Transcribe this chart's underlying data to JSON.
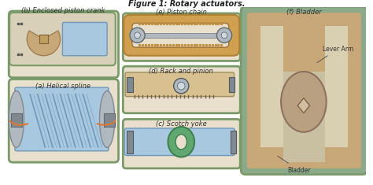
{
  "title": "Figure 1: Rotary actuators.",
  "bg_color": "#f5f5f5",
  "labels": {
    "a": "(a) Helical spline",
    "b": "(b) Enclosed piston crank",
    "c": "(c) Scotch yoke",
    "d": "(d) Rack and pinion",
    "e": "(e) Piston chain",
    "f": "(f) Bladder",
    "bladder_label": "Bladder",
    "lever_label": "Lever Arm"
  },
  "colors": {
    "border_green": "#7a9a6a",
    "fill_light": "#e8e0cc",
    "fill_tan": "#c8a878",
    "fill_blue_light": "#a8c8e0",
    "fill_blue": "#7098b8",
    "fill_gray": "#b0b8c0",
    "fill_dark_gray": "#808890",
    "fill_green_dark": "#5a7a5a",
    "background": "#ffffff",
    "text_color": "#333333",
    "title_color": "#222222"
  }
}
